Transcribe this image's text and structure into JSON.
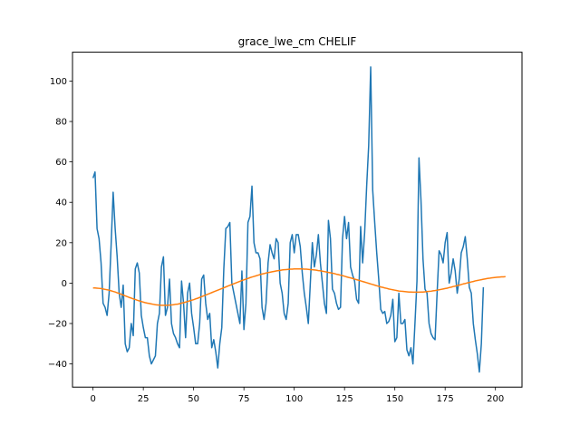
{
  "chart_data": {
    "type": "line",
    "title": "grace_lwe_cm CHELIF",
    "xlabel": "",
    "ylabel": "",
    "xlim": [
      -10.2,
      213.2
    ],
    "ylim": [
      -51.5,
      114.3
    ],
    "xticks": [
      0,
      25,
      50,
      75,
      100,
      125,
      150,
      175,
      200
    ],
    "yticks": [
      -40,
      -20,
      0,
      20,
      40,
      60,
      80,
      100
    ],
    "grid": false,
    "legend": "none",
    "series": [
      {
        "color": "#1f77b4",
        "values": [
          52,
          55,
          27,
          22,
          10,
          -10,
          -12,
          -16,
          -5,
          19,
          45,
          27,
          13,
          -5,
          -12,
          -1,
          -30,
          -34,
          -32,
          -20,
          -26,
          7,
          10,
          5,
          -16,
          -22,
          -27,
          -27,
          -36,
          -40,
          -38,
          -36,
          -20,
          -15,
          8,
          13,
          -16,
          -12,
          2,
          -20,
          -25,
          -27,
          -30,
          -32,
          1,
          -10,
          -27,
          -5,
          0,
          -15,
          -22,
          -30,
          -30,
          -20,
          2,
          4,
          -10,
          -18,
          -15,
          -32,
          -28,
          -34,
          -42,
          -30,
          -22,
          7,
          27,
          28,
          30,
          0,
          -5,
          -10,
          -15,
          -20,
          6,
          -23,
          -10,
          30,
          33,
          48,
          20,
          15,
          15,
          12,
          -12,
          -18,
          -10,
          10,
          19,
          15,
          12,
          22,
          20,
          0,
          -5,
          -15,
          -18,
          -10,
          20,
          24,
          15,
          24,
          24,
          18,
          5,
          -5,
          -12,
          -20,
          0,
          20,
          8,
          14,
          24,
          10,
          0,
          -10,
          -15,
          31,
          22,
          -3,
          -5,
          -10,
          -13,
          -12,
          22,
          33,
          22,
          30,
          8,
          4,
          1,
          -8,
          -10,
          28,
          10,
          25,
          48,
          68,
          107,
          46,
          30,
          15,
          2,
          -13,
          -15,
          -14,
          -20,
          -19,
          -16,
          -8,
          -29,
          -27,
          -5,
          -20,
          -20,
          -18,
          -33,
          -36,
          -32,
          -40,
          -20,
          1,
          62,
          41,
          12,
          -3,
          -5,
          -20,
          -25,
          -27,
          -28,
          -5,
          16,
          14,
          10,
          20,
          25,
          0,
          5,
          12,
          6,
          -5,
          2,
          15,
          18,
          23,
          12,
          -2,
          -5,
          -20,
          -28,
          -35,
          -44,
          -30,
          -2
        ],
        "x_start": 0
      },
      {
        "color": "#ff7f0e",
        "values": [
          -2.4,
          -2.4,
          -2.5,
          -2.6,
          -2.7,
          -2.9,
          -3.1,
          -3.3,
          -3.5,
          -3.8,
          -4.1,
          -4.4,
          -4.8,
          -5.1,
          -5.5,
          -5.9,
          -6.3,
          -6.7,
          -7.1,
          -7.4,
          -7.8,
          -8.1,
          -8.5,
          -8.8,
          -9.1,
          -9.4,
          -9.7,
          -9.9,
          -10.1,
          -10.3,
          -10.5,
          -10.7,
          -10.8,
          -10.9,
          -11,
          -11,
          -11,
          -11,
          -10.9,
          -10.8,
          -10.7,
          -10.5,
          -10.4,
          -10.2,
          -9.9,
          -9.7,
          -9.4,
          -9.1,
          -8.8,
          -8.5,
          -8.2,
          -7.8,
          -7.5,
          -7.1,
          -6.7,
          -6.3,
          -5.9,
          -5.5,
          -5.1,
          -4.7,
          -4.3,
          -3.9,
          -3.5,
          -3.1,
          -2.7,
          -2.3,
          -1.9,
          -1.5,
          -1.1,
          -0.7,
          -0.3,
          0.1,
          0.5,
          0.9,
          1.3,
          1.6,
          2,
          2.3,
          2.7,
          3,
          3.3,
          3.6,
          3.9,
          4.2,
          4.5,
          4.7,
          5,
          5.2,
          5.4,
          5.6,
          5.8,
          6,
          6.2,
          6.3,
          6.5,
          6.6,
          6.7,
          6.8,
          6.9,
          6.9,
          7,
          7,
          7,
          7,
          7,
          6.9,
          6.9,
          6.8,
          6.7,
          6.6,
          6.5,
          6.4,
          6.2,
          6.1,
          5.9,
          5.7,
          5.5,
          5.3,
          5.1,
          4.9,
          4.7,
          4.4,
          4.2,
          3.9,
          3.7,
          3.4,
          3.1,
          2.8,
          2.6,
          2.3,
          2,
          1.7,
          1.4,
          1.1,
          0.8,
          0.5,
          0.2,
          -0.1,
          -0.4,
          -0.7,
          -1,
          -1.3,
          -1.6,
          -1.9,
          -2.1,
          -2.4,
          -2.6,
          -2.9,
          -3.1,
          -3.3,
          -3.5,
          -3.7,
          -3.9,
          -4,
          -4.1,
          -4.2,
          -4.3,
          -4.4,
          -4.4,
          -4.5,
          -4.5,
          -4.5,
          -4.5,
          -4.4,
          -4.4,
          -4.3,
          -4.2,
          -4.1,
          -4,
          -3.8,
          -3.7,
          -3.5,
          -3.3,
          -3.1,
          -2.9,
          -2.7,
          -2.5,
          -2.2,
          -2,
          -1.7,
          -1.5,
          -1.2,
          -1,
          -0.7,
          -0.4,
          -0.2,
          0.1,
          0.3,
          0.6,
          0.8,
          1.1,
          1.3,
          1.5,
          1.7,
          1.9,
          2.1,
          2.3,
          2.4,
          2.6,
          2.7,
          2.8,
          2.9,
          3,
          3.1,
          3.1,
          3.2
        ],
        "x_start": 0
      }
    ]
  }
}
